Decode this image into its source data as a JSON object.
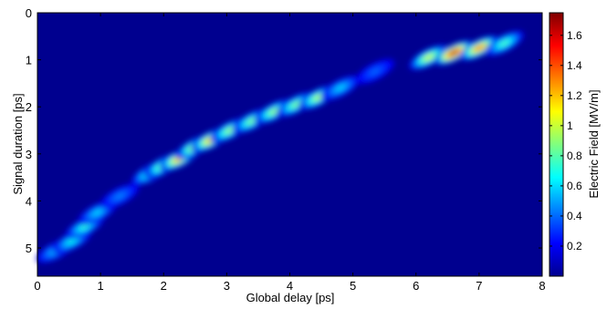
{
  "chart_data": {
    "type": "heatmap",
    "xlabel": "Global delay [ps]",
    "ylabel": "Signal duration [ps]",
    "colorbar_label": "Electric Field [MV/m]",
    "xlim": [
      0,
      8
    ],
    "ylim": [
      0,
      5.6
    ],
    "y_inverted": true,
    "clim": [
      0,
      1.75
    ],
    "xticks": [
      0,
      1,
      2,
      3,
      4,
      5,
      6,
      7,
      8
    ],
    "yticks": [
      0,
      1,
      2,
      3,
      4,
      5
    ],
    "cbar_ticks": [
      0.2,
      0.4,
      0.6,
      0.8,
      1,
      1.2,
      1.4,
      1.6
    ],
    "colormap": "jet",
    "features": [
      {
        "x": 0.3,
        "y": 5.05,
        "value": 0.6
      },
      {
        "x": 0.55,
        "y": 4.85,
        "value": 0.7
      },
      {
        "x": 0.75,
        "y": 4.55,
        "value": 0.75
      },
      {
        "x": 0.95,
        "y": 4.25,
        "value": 0.6
      },
      {
        "x": 1.3,
        "y": 3.9,
        "value": 0.45
      },
      {
        "x": 1.8,
        "y": 3.4,
        "value": 0.85
      },
      {
        "x": 2.0,
        "y": 3.25,
        "value": 1.0
      },
      {
        "x": 2.25,
        "y": 3.1,
        "value": 1.35
      },
      {
        "x": 2.5,
        "y": 2.85,
        "value": 1.1
      },
      {
        "x": 2.75,
        "y": 2.7,
        "value": 1.3
      },
      {
        "x": 3.05,
        "y": 2.5,
        "value": 0.95
      },
      {
        "x": 3.4,
        "y": 2.3,
        "value": 0.9
      },
      {
        "x": 3.75,
        "y": 2.1,
        "value": 0.95
      },
      {
        "x": 4.1,
        "y": 1.95,
        "value": 0.9
      },
      {
        "x": 4.45,
        "y": 1.8,
        "value": 1.0
      },
      {
        "x": 4.8,
        "y": 1.6,
        "value": 0.6
      },
      {
        "x": 5.35,
        "y": 1.25,
        "value": 0.4
      },
      {
        "x": 6.2,
        "y": 0.95,
        "value": 1.05
      },
      {
        "x": 6.6,
        "y": 0.85,
        "value": 1.7
      },
      {
        "x": 7.0,
        "y": 0.75,
        "value": 1.4
      },
      {
        "x": 7.4,
        "y": 0.65,
        "value": 0.8
      }
    ]
  }
}
